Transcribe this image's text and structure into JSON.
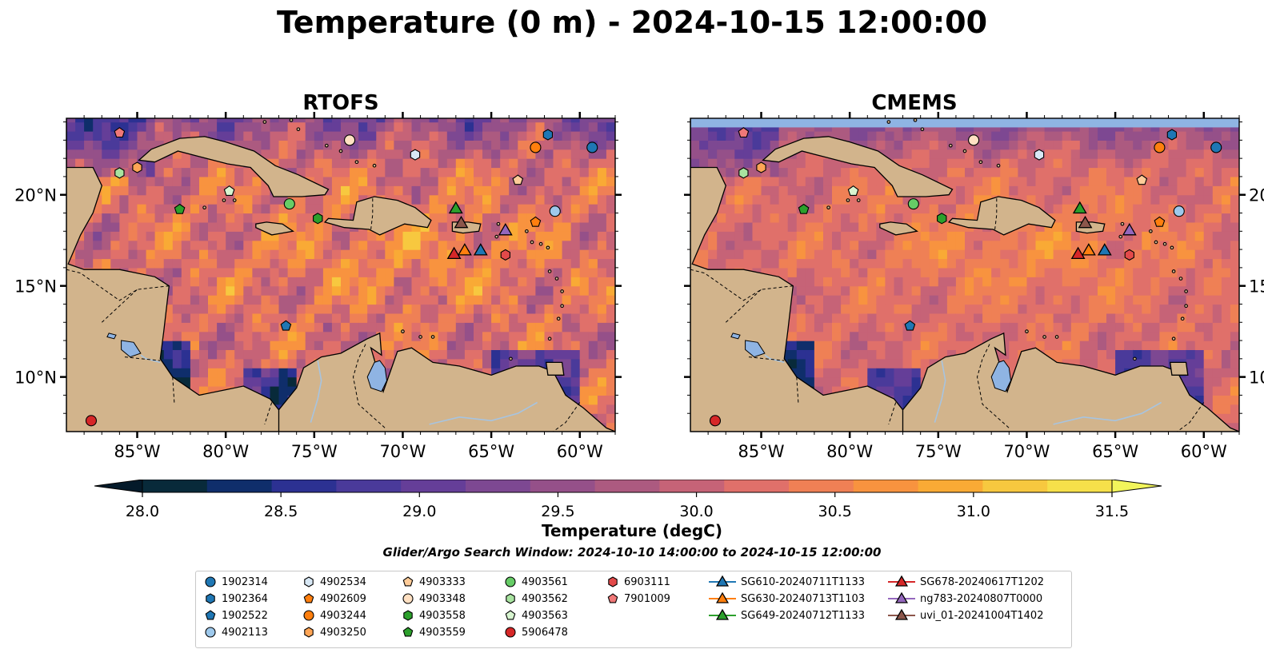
{
  "title": "Temperature (0 m) - 2024-10-15 12:00:00",
  "panels": [
    {
      "title": "RTOFS",
      "model_key": "rtofs"
    },
    {
      "title": "CMEMS",
      "model_key": "cmems"
    }
  ],
  "map": {
    "lon_range": [
      -89,
      -58
    ],
    "lat_range": [
      7,
      24.2
    ],
    "lon_ticks": [
      {
        "value": -85,
        "label": "85°W"
      },
      {
        "value": -80,
        "label": "80°W"
      },
      {
        "value": -75,
        "label": "75°W"
      },
      {
        "value": -70,
        "label": "70°W"
      },
      {
        "value": -65,
        "label": "65°W"
      },
      {
        "value": -60,
        "label": "60°W"
      }
    ],
    "lat_ticks": [
      {
        "value": 20,
        "label": "20°N"
      },
      {
        "value": 15,
        "label": "15°N"
      },
      {
        "value": 10,
        "label": "10°N"
      }
    ],
    "land_color": "#d2b48c",
    "lake_color": "#8fb4e3",
    "river_color": "#a7c4e0"
  },
  "colorbar": {
    "title": "Temperature (degC)",
    "min": 28.0,
    "max": 31.5,
    "ticks": [
      {
        "value": 28.0,
        "label": "28.0"
      },
      {
        "value": 28.5,
        "label": "28.5"
      },
      {
        "value": 29.0,
        "label": "29.0"
      },
      {
        "value": 29.5,
        "label": "29.5"
      },
      {
        "value": 30.0,
        "label": "30.0"
      },
      {
        "value": 30.5,
        "label": "30.5"
      },
      {
        "value": 31.0,
        "label": "31.0"
      },
      {
        "value": 31.5,
        "label": "31.5"
      }
    ],
    "colors": [
      "#082a3a",
      "#0f2e6b",
      "#2c3192",
      "#4a3a9a",
      "#653e98",
      "#7d4892",
      "#955089",
      "#ac5a80",
      "#c66377",
      "#e0706a",
      "#ef8055",
      "#f8933f",
      "#f9aa35",
      "#f7c83f",
      "#f6e04a"
    ],
    "under_color": "#041a2a",
    "over_color": "#f2f55b"
  },
  "search_window": "Glider/Argo Search Window: 2024-10-10 14:00:00 to 2024-10-15 12:00:00",
  "platforms": [
    {
      "id": "1902314",
      "kind": "argo",
      "marker": "circle",
      "color": "#1f77b4",
      "lon": -59.3,
      "lat": 22.6
    },
    {
      "id": "1902364",
      "kind": "argo",
      "marker": "hexagon",
      "color": "#1f77b4",
      "lon": -61.8,
      "lat": 23.3
    },
    {
      "id": "1902522",
      "kind": "argo",
      "marker": "pentagon",
      "color": "#1f77b4",
      "lon": -76.6,
      "lat": 12.8
    },
    {
      "id": "4902113",
      "kind": "argo",
      "marker": "circle",
      "color": "#9ec9ec",
      "lon": -61.4,
      "lat": 19.1
    },
    {
      "id": "4902534",
      "kind": "argo",
      "marker": "hexagon",
      "color": "#d8e8f5",
      "lon": -69.3,
      "lat": 22.2
    },
    {
      "id": "4902609",
      "kind": "argo",
      "marker": "pentagon",
      "color": "#ff7f0e",
      "lon": -62.5,
      "lat": 18.5
    },
    {
      "id": "4903244",
      "kind": "argo",
      "marker": "circle",
      "color": "#ff7f0e",
      "lon": -62.5,
      "lat": 22.6
    },
    {
      "id": "4903250",
      "kind": "argo",
      "marker": "hexagon",
      "color": "#ffa555",
      "lon": -85.0,
      "lat": 21.5
    },
    {
      "id": "4903333",
      "kind": "argo",
      "marker": "pentagon",
      "color": "#ffcc99",
      "lon": -63.5,
      "lat": 20.8
    },
    {
      "id": "4903348",
      "kind": "argo",
      "marker": "circle",
      "color": "#ffe0c2",
      "lon": -73.0,
      "lat": 23.0
    },
    {
      "id": "4903558",
      "kind": "argo",
      "marker": "hexagon",
      "color": "#2ca02c",
      "lon": -74.8,
      "lat": 18.7
    },
    {
      "id": "4903559",
      "kind": "argo",
      "marker": "pentagon",
      "color": "#2ca02c",
      "lon": -82.6,
      "lat": 19.2
    },
    {
      "id": "4903561",
      "kind": "argo",
      "marker": "circle",
      "color": "#66cc66",
      "lon": -76.4,
      "lat": 19.5
    },
    {
      "id": "4903562",
      "kind": "argo",
      "marker": "hexagon",
      "color": "#a8e3a0",
      "lon": -86.0,
      "lat": 21.2
    },
    {
      "id": "4903563",
      "kind": "argo",
      "marker": "pentagon",
      "color": "#d8f5d0",
      "lon": -79.8,
      "lat": 20.2
    },
    {
      "id": "5906478",
      "kind": "argo",
      "marker": "circle",
      "color": "#d62728",
      "lon": -87.6,
      "lat": 7.6
    },
    {
      "id": "6903111",
      "kind": "argo",
      "marker": "hexagon",
      "color": "#e34a4a",
      "lon": -64.2,
      "lat": 16.7
    },
    {
      "id": "7901009",
      "kind": "argo",
      "marker": "pentagon",
      "color": "#f07878",
      "lon": -86.0,
      "lat": 23.4
    },
    {
      "id": "SG610-20240711T1133",
      "kind": "glider",
      "marker": "triangle",
      "color": "#1f77b4",
      "lon": -65.6,
      "lat": 16.9
    },
    {
      "id": "SG630-20240713T1103",
      "kind": "glider",
      "marker": "triangle",
      "color": "#ff7f0e",
      "lon": -66.5,
      "lat": 16.9
    },
    {
      "id": "SG649-20240712T1133",
      "kind": "glider",
      "marker": "triangle",
      "color": "#2ca02c",
      "lon": -67.0,
      "lat": 19.2
    },
    {
      "id": "SG678-20240617T1202",
      "kind": "glider",
      "marker": "triangle",
      "color": "#d62728",
      "lon": -67.1,
      "lat": 16.7
    },
    {
      "id": "ng783-20240807T0000",
      "kind": "glider",
      "marker": "triangle",
      "color": "#9467bd",
      "lon": -64.2,
      "lat": 18.0
    },
    {
      "id": "uvi_01-20241004T1402",
      "kind": "glider",
      "marker": "triangle",
      "color": "#8c564b",
      "lon": -66.7,
      "lat": 18.4
    }
  ]
}
